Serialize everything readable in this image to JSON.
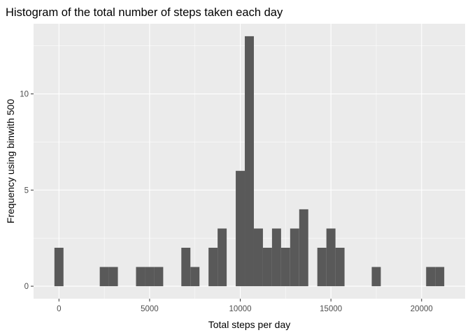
{
  "chart_data": {
    "type": "bar",
    "title": "Histogram of the total number of steps taken each day",
    "xlabel": "Total steps per day",
    "ylabel": "Frequency using binwith 500",
    "binwidth": 500,
    "xlim": [
      -1400,
      22400
    ],
    "ylim": [
      -0.65,
      13.65
    ],
    "x_ticks": [
      0,
      5000,
      10000,
      15000,
      20000
    ],
    "x_tick_labels": [
      "0",
      "5000",
      "10000",
      "15000",
      "20000"
    ],
    "y_ticks": [
      0,
      5,
      10
    ],
    "y_tick_labels": [
      "0",
      "5",
      "10"
    ],
    "grid": true,
    "colors": {
      "panel": "#ebebeb",
      "grid_major": "#ffffff",
      "bar": "#595959",
      "tick": "#333333"
    },
    "bins": [
      {
        "x": 0,
        "count": 2
      },
      {
        "x": 2500,
        "count": 1
      },
      {
        "x": 3000,
        "count": 1
      },
      {
        "x": 4500,
        "count": 1
      },
      {
        "x": 5000,
        "count": 1
      },
      {
        "x": 5500,
        "count": 1
      },
      {
        "x": 7000,
        "count": 2
      },
      {
        "x": 7500,
        "count": 1
      },
      {
        "x": 8500,
        "count": 2
      },
      {
        "x": 9000,
        "count": 3
      },
      {
        "x": 10000,
        "count": 6
      },
      {
        "x": 10500,
        "count": 13
      },
      {
        "x": 11000,
        "count": 3
      },
      {
        "x": 11500,
        "count": 2
      },
      {
        "x": 12000,
        "count": 3
      },
      {
        "x": 12500,
        "count": 2
      },
      {
        "x": 13000,
        "count": 3
      },
      {
        "x": 13500,
        "count": 4
      },
      {
        "x": 14500,
        "count": 2
      },
      {
        "x": 15000,
        "count": 3
      },
      {
        "x": 15500,
        "count": 2
      },
      {
        "x": 17500,
        "count": 1
      },
      {
        "x": 20500,
        "count": 1
      },
      {
        "x": 21000,
        "count": 1
      }
    ]
  }
}
